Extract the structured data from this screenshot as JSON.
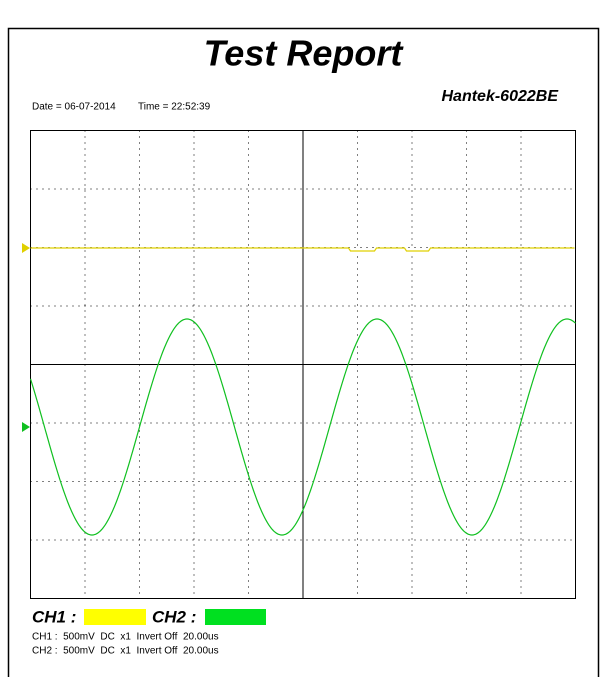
{
  "header": {
    "title": "Test Report",
    "model": "Hantek-6022BE",
    "date": "Date = 06-07-2014",
    "time": "Time = 22:52:39"
  },
  "legend": {
    "ch1": "CH1 :",
    "ch2": "CH2 :"
  },
  "channels": [
    "CH1 :  500mV  DC  x1  Invert Off  20.00us",
    "CH2 :  500mV  DC  x1  Invert Off  20.00us"
  ]
}
